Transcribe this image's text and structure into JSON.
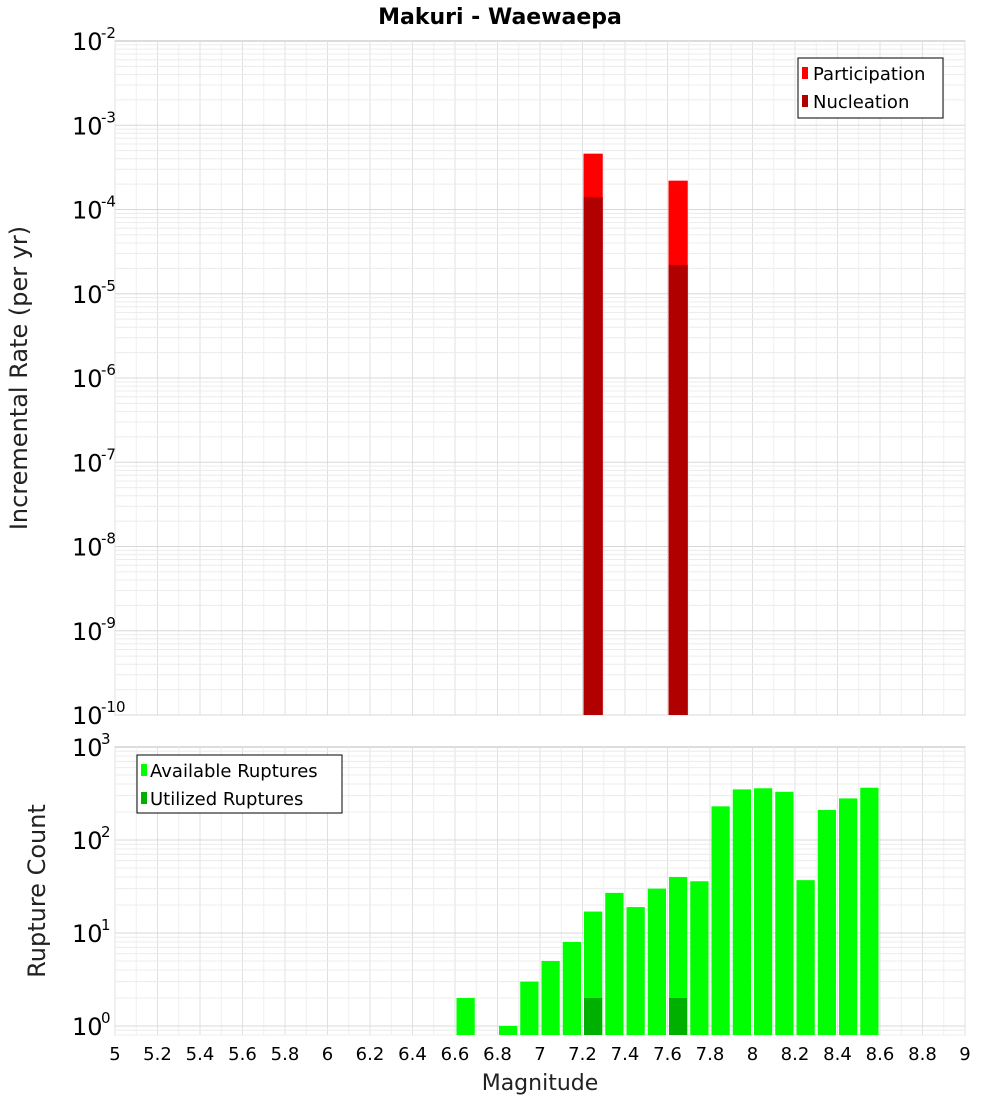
{
  "chart_data": [
    {
      "type": "bar",
      "title": "Makuri - Waewaepa",
      "ylabel": "Incremental Rate (per yr)",
      "xlabel": "",
      "yscale": "log",
      "xlim": [
        5,
        9
      ],
      "ylim": [
        1e-10,
        0.01
      ],
      "y_ticks": [
        {
          "base": "10",
          "exp": "-2"
        },
        {
          "base": "10",
          "exp": "-3"
        },
        {
          "base": "10",
          "exp": "-4"
        },
        {
          "base": "10",
          "exp": "-5"
        },
        {
          "base": "10",
          "exp": "-6"
        },
        {
          "base": "10",
          "exp": "-7"
        },
        {
          "base": "10",
          "exp": "-8"
        },
        {
          "base": "10",
          "exp": "-9"
        },
        {
          "base": "10",
          "exp": "-10"
        }
      ],
      "grid": true,
      "legend_position": "top-right",
      "series": [
        {
          "name": "Participation",
          "color": "#ff0000",
          "points": [
            {
              "x": 7.25,
              "y": 0.00046
            },
            {
              "x": 7.65,
              "y": 0.00022
            }
          ]
        },
        {
          "name": "Nucleation",
          "color": "#b00000",
          "points": [
            {
              "x": 7.25,
              "y": 0.00014
            },
            {
              "x": 7.65,
              "y": 2.2e-05
            }
          ]
        }
      ]
    },
    {
      "type": "bar",
      "title": "",
      "ylabel": "Rupture Count",
      "xlabel": "Magnitude",
      "yscale": "log",
      "xlim": [
        5,
        9
      ],
      "ylim": [
        0.8,
        1000
      ],
      "x_ticks": [
        "5",
        "5.2",
        "5.4",
        "5.6",
        "5.8",
        "6",
        "6.2",
        "6.4",
        "6.6",
        "6.8",
        "7",
        "7.2",
        "7.4",
        "7.6",
        "7.8",
        "8",
        "8.2",
        "8.4",
        "8.6",
        "8.8",
        "9"
      ],
      "y_ticks": [
        {
          "base": "10",
          "exp": "3"
        },
        {
          "base": "10",
          "exp": "2"
        },
        {
          "base": "10",
          "exp": "1"
        },
        {
          "base": "10",
          "exp": "0"
        }
      ],
      "grid": true,
      "legend_position": "top-left",
      "series": [
        {
          "name": "Available Ruptures",
          "color": "#00ff00",
          "points": [
            {
              "x": 6.65,
              "y": 2
            },
            {
              "x": 6.85,
              "y": 1
            },
            {
              "x": 6.95,
              "y": 3
            },
            {
              "x": 7.05,
              "y": 5
            },
            {
              "x": 7.15,
              "y": 8
            },
            {
              "x": 7.25,
              "y": 17
            },
            {
              "x": 7.35,
              "y": 27
            },
            {
              "x": 7.45,
              "y": 19
            },
            {
              "x": 7.55,
              "y": 30
            },
            {
              "x": 7.65,
              "y": 40
            },
            {
              "x": 7.75,
              "y": 36
            },
            {
              "x": 7.85,
              "y": 230
            },
            {
              "x": 7.95,
              "y": 350
            },
            {
              "x": 8.05,
              "y": 360
            },
            {
              "x": 8.15,
              "y": 330
            },
            {
              "x": 8.25,
              "y": 37
            },
            {
              "x": 8.35,
              "y": 210
            },
            {
              "x": 8.45,
              "y": 280
            },
            {
              "x": 8.55,
              "y": 365
            }
          ]
        },
        {
          "name": "Utilized Ruptures",
          "color": "#00b000",
          "points": [
            {
              "x": 7.25,
              "y": 2
            },
            {
              "x": 7.65,
              "y": 2
            }
          ]
        }
      ]
    }
  ]
}
